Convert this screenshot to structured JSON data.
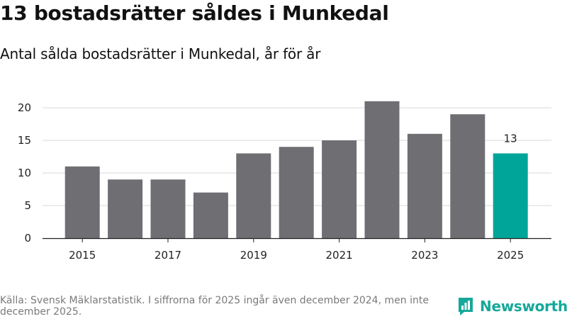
{
  "title": "13 bostadsrätter såldes i Munkedal",
  "subtitle": "Antal sålda bostadsrätter i Munkedal, år för år",
  "source": "Källa: Svensk Mäklarstatistik. I siffrorna för 2025 ingår även december 2024, men inte december 2025.",
  "brand": "Newsworthy",
  "colors": {
    "bar": "#6f6e73",
    "highlight": "#00a59a",
    "grid": "#d8d8d8",
    "brand": "#16a89a"
  },
  "chart_data": {
    "type": "bar",
    "title": "13 bostadsrätter såldes i Munkedal",
    "subtitle": "Antal sålda bostadsrätter i Munkedal, år för år",
    "xlabel": "",
    "ylabel": "",
    "categories": [
      "2015",
      "2016",
      "2017",
      "2018",
      "2019",
      "2020",
      "2021",
      "2022",
      "2023",
      "2024",
      "2025"
    ],
    "values": [
      11,
      9,
      9,
      7,
      13,
      14,
      15,
      21,
      16,
      19,
      13
    ],
    "highlight": "2025",
    "highlight_label": "13",
    "x_tick_labels": [
      "2015",
      "2017",
      "2019",
      "2021",
      "2023",
      "2025"
    ],
    "y_ticks": [
      0,
      5,
      10,
      15,
      20
    ],
    "ylim": [
      0,
      21
    ],
    "grid": true
  }
}
